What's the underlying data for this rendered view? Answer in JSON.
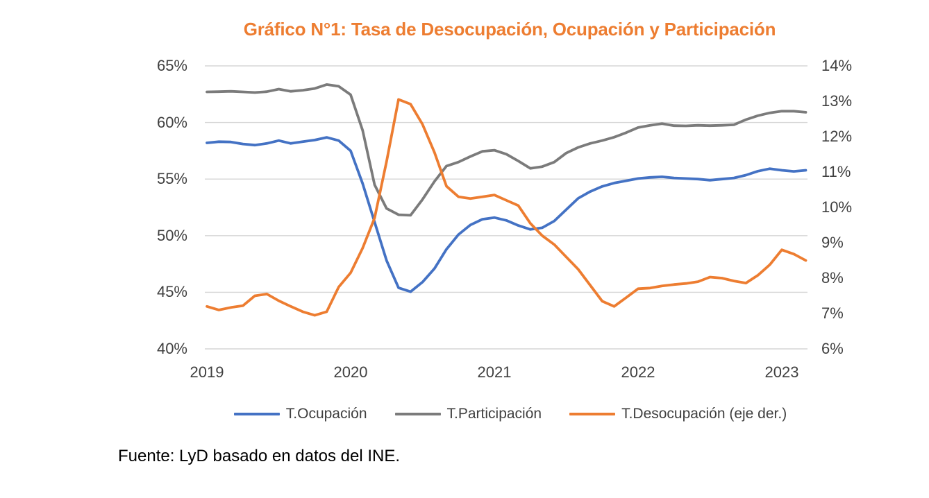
{
  "title": "Gráfico N°1: Tasa de Desocupación, Ocupación y Participación",
  "source_note": "Fuente: LyD basado en datos del INE.",
  "colors": {
    "title": "#ED7D31",
    "axis_text": "#404040",
    "gridline": "#D6D6D6",
    "ocupacion_blue": "#4472C4",
    "participacion_gray": "#7B7B7B",
    "desocupacion_orange": "#ED7D31"
  },
  "chart_data": {
    "type": "line",
    "title": "Gráfico N°1: Tasa de Desocupación, Ocupación y Participación",
    "x_tick_labels": [
      "2019",
      "2020",
      "2021",
      "2022",
      "2023"
    ],
    "x_note": "monthly moving-quarter points, Jan 2019 – Mar 2023",
    "left_axis": {
      "tick_labels": [
        "65%",
        "60%",
        "55%",
        "50%",
        "45%",
        "40%"
      ],
      "min": 40,
      "max": 65,
      "step": 5,
      "grid": true
    },
    "right_axis": {
      "tick_labels": [
        "14%",
        "13%",
        "12%",
        "11%",
        "10%",
        "9%",
        "8%",
        "7%",
        "6%"
      ],
      "min": 6,
      "max": 14,
      "step": 1,
      "grid": false
    },
    "legend_position": "bottom",
    "series": [
      {
        "name": "T.Ocupación",
        "axis": "left",
        "color": "#4472C4",
        "values": [
          58.2,
          58.3,
          58.28,
          58.1,
          58.0,
          58.15,
          58.4,
          58.15,
          58.3,
          58.45,
          58.68,
          58.4,
          57.5,
          54.6,
          51.2,
          47.8,
          45.4,
          45.05,
          45.9,
          47.1,
          48.8,
          50.1,
          50.95,
          51.45,
          51.6,
          51.35,
          50.9,
          50.55,
          50.7,
          51.3,
          52.3,
          53.3,
          53.9,
          54.35,
          54.65,
          54.85,
          55.05,
          55.15,
          55.2,
          55.1,
          55.05,
          55.0,
          54.9,
          55.0,
          55.1,
          55.35,
          55.7,
          55.92,
          55.78,
          55.68,
          55.78
        ]
      },
      {
        "name": "T.Participación",
        "axis": "left",
        "color": "#7B7B7B",
        "values": [
          62.7,
          62.72,
          62.75,
          62.7,
          62.65,
          62.72,
          62.95,
          62.75,
          62.85,
          63.0,
          63.35,
          63.2,
          62.45,
          59.3,
          54.5,
          52.4,
          51.85,
          51.8,
          53.2,
          54.8,
          56.15,
          56.5,
          57.0,
          57.45,
          57.55,
          57.2,
          56.6,
          55.95,
          56.1,
          56.5,
          57.3,
          57.8,
          58.15,
          58.4,
          58.7,
          59.1,
          59.55,
          59.75,
          59.9,
          59.72,
          59.7,
          59.75,
          59.72,
          59.75,
          59.8,
          60.25,
          60.6,
          60.85,
          61.0,
          61.0,
          60.9
        ]
      },
      {
        "name": "T.Desocupación (eje der.)",
        "axis": "right",
        "color": "#ED7D31",
        "values": [
          7.2,
          7.1,
          7.17,
          7.22,
          7.5,
          7.55,
          7.36,
          7.2,
          7.05,
          6.95,
          7.05,
          7.75,
          8.15,
          8.85,
          9.7,
          11.3,
          13.05,
          12.92,
          12.35,
          11.55,
          10.6,
          10.3,
          10.25,
          10.3,
          10.35,
          10.2,
          10.05,
          9.55,
          9.2,
          8.95,
          8.6,
          8.25,
          7.8,
          7.35,
          7.2,
          7.45,
          7.7,
          7.72,
          7.78,
          7.82,
          7.85,
          7.9,
          8.03,
          8.0,
          7.92,
          7.86,
          8.08,
          8.38,
          8.8,
          8.68,
          8.5
        ]
      }
    ]
  }
}
